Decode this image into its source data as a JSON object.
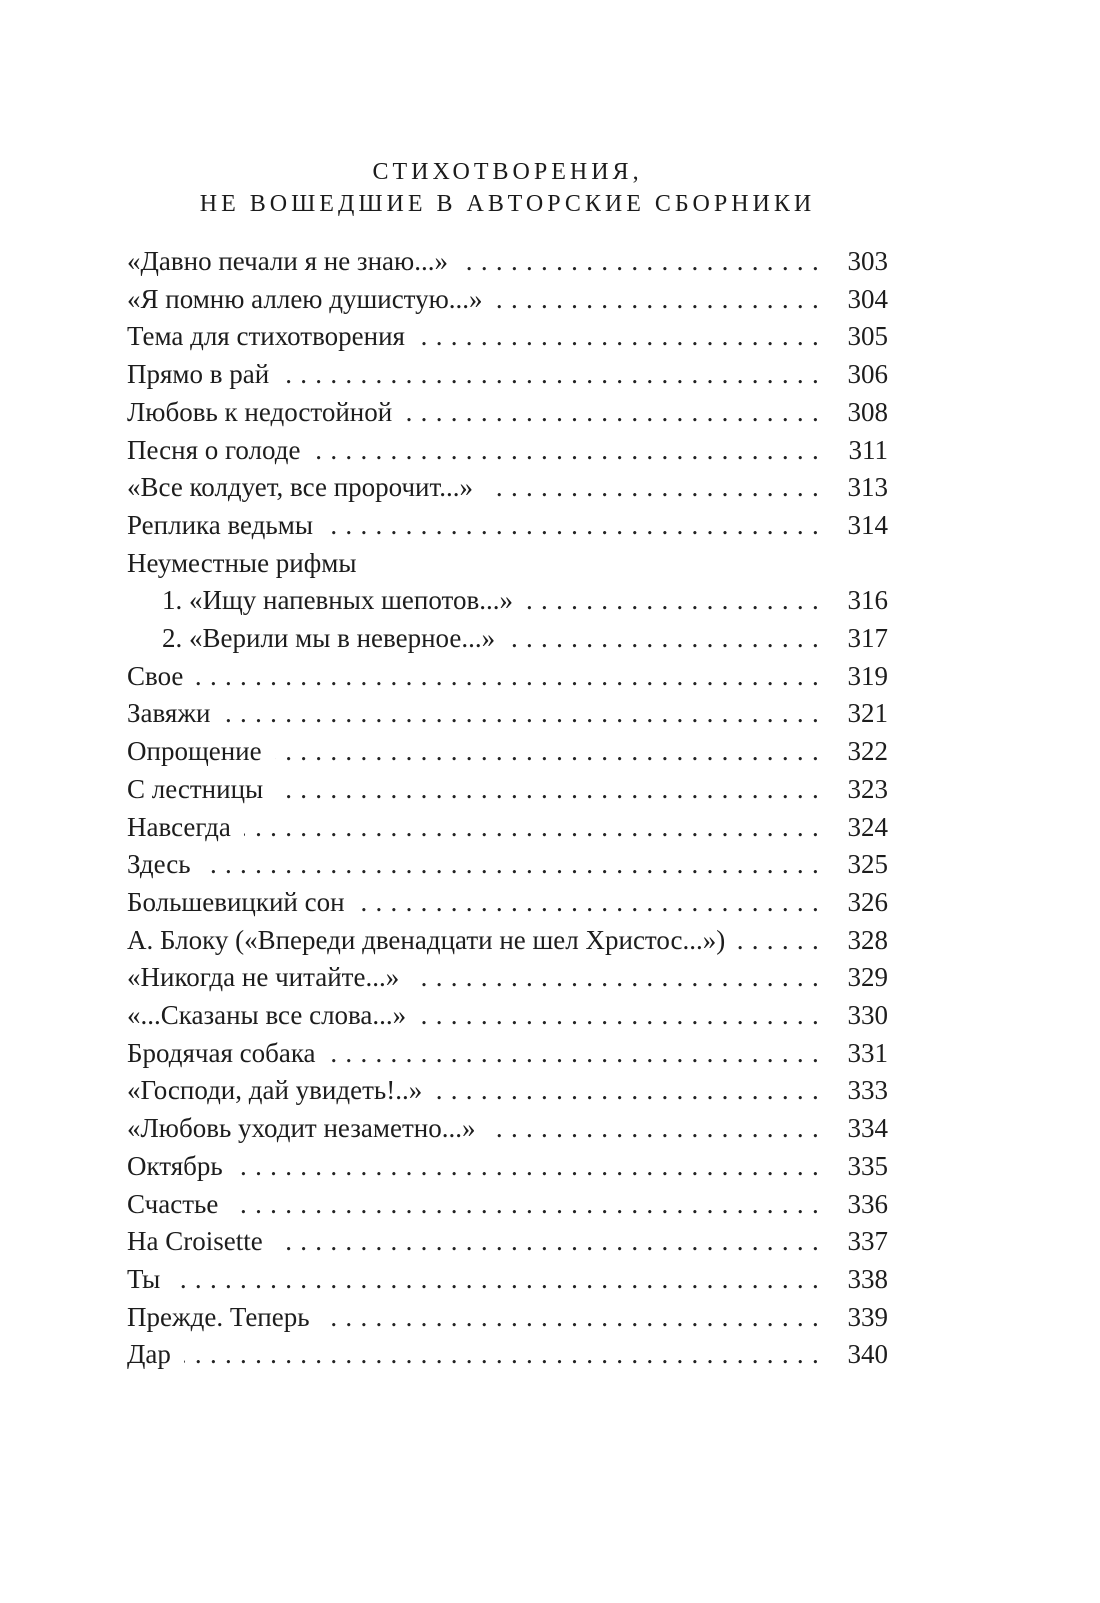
{
  "page": {
    "background_color": "#ffffff",
    "text_color": "#1d1d1d"
  },
  "header": {
    "line1": "СТИХОТВОРЕНИЯ,",
    "line2": "НЕ ВОШЕДШИЕ В АВТОРСКИЕ СБОРНИКИ"
  },
  "toc": {
    "entries": [
      {
        "title": "«Давно печали я не знаю...»",
        "page": "303"
      },
      {
        "title": "«Я помню аллею душистую...»",
        "page": "304"
      },
      {
        "title": "Тема для стихотворения",
        "page": "305"
      },
      {
        "title": "Прямо в рай",
        "page": "306"
      },
      {
        "title": "Любовь к недостойной",
        "page": "308"
      },
      {
        "title": "Песня о голоде",
        "page": "311"
      },
      {
        "title": "«Все колдует, все пророчит...»",
        "page": "313"
      },
      {
        "title": "Реплика ведьмы",
        "page": "314"
      },
      {
        "title": "Неуместные рифмы",
        "page": ""
      },
      {
        "title": "1. «Ищу напевных шепотов...»",
        "page": "316",
        "indent": true
      },
      {
        "title": "2. «Верили мы в неверное...»",
        "page": "317",
        "indent": true
      },
      {
        "title": "Свое",
        "page": "319"
      },
      {
        "title": "Завяжи",
        "page": "321"
      },
      {
        "title": "Опрощение",
        "page": "322"
      },
      {
        "title": "С лестницы",
        "page": "323"
      },
      {
        "title": "Навсегда",
        "page": "324"
      },
      {
        "title": "Здесь",
        "page": "325"
      },
      {
        "title": "Большевицкий сон",
        "page": "326"
      },
      {
        "title": "А. Блоку («Впереди двенадцати не шел Христос...»)",
        "page": "328"
      },
      {
        "title": "«Никогда не читайте...»",
        "page": "329"
      },
      {
        "title": "«...Сказаны все слова...»",
        "page": "330"
      },
      {
        "title": "Бродячая собака",
        "page": "331"
      },
      {
        "title": "«Господи, дай увидеть!..»",
        "page": "333"
      },
      {
        "title": "«Любовь уходит незаметно...»",
        "page": "334"
      },
      {
        "title": "Октябрь",
        "page": "335"
      },
      {
        "title": "Счастье",
        "page": "336"
      },
      {
        "title": "На Croisette",
        "page": "337"
      },
      {
        "title": "Ты",
        "page": "338"
      },
      {
        "title": "Прежде. Теперь",
        "page": "339"
      },
      {
        "title": "Дар",
        "page": "340"
      }
    ]
  }
}
